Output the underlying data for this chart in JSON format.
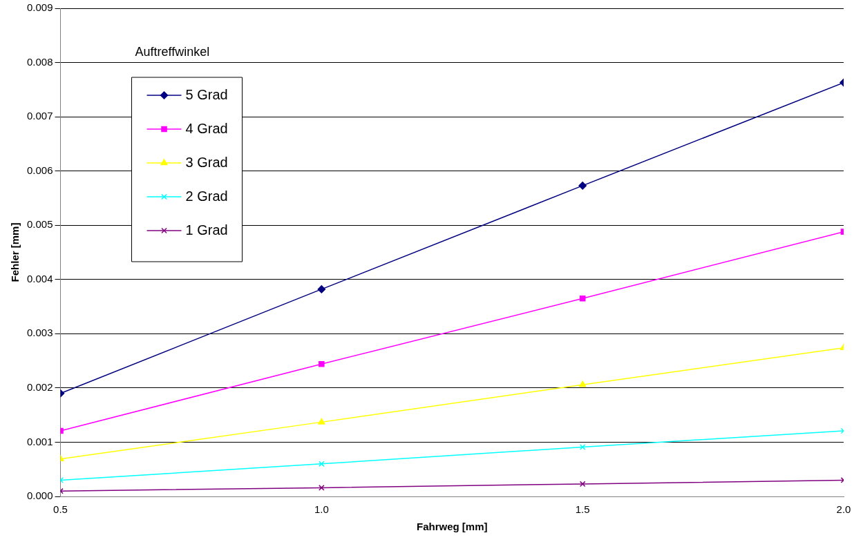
{
  "chart_data": {
    "type": "line",
    "xlabel": "Fahrweg [mm]",
    "ylabel": "Fehler [mm]",
    "legend_title": "Auftreffwinkel",
    "legend": "top left",
    "x": [
      0.5,
      1.0,
      1.5,
      2.0
    ],
    "xlim": [
      0.5,
      2.0
    ],
    "xticks": [
      {
        "value": 0.5,
        "label": "0.5"
      },
      {
        "value": 1.0,
        "label": "1.0"
      },
      {
        "value": 1.5,
        "label": "1.5"
      },
      {
        "value": 2.0,
        "label": "2.0"
      }
    ],
    "ylim": [
      0,
      0.009
    ],
    "yticks": [
      {
        "value": 0,
        "label": "0.000"
      },
      {
        "value": 0.001,
        "label": "0.001"
      },
      {
        "value": 0.002,
        "label": "0.002"
      },
      {
        "value": 0.003,
        "label": "0.003"
      },
      {
        "value": 0.004,
        "label": "0.004"
      },
      {
        "value": 0.005,
        "label": "0.005"
      },
      {
        "value": 0.006,
        "label": "0.006"
      },
      {
        "value": 0.007,
        "label": "0.007"
      },
      {
        "value": 0.008,
        "label": "0.008"
      },
      {
        "value": 0.009,
        "label": "0.009"
      }
    ],
    "grid": "y",
    "line_style": "solid",
    "series": [
      {
        "name": "5 Grad",
        "color": "#000080",
        "marker": "diamond",
        "values": [
          0.0019,
          0.00382,
          0.00573,
          0.00763
        ]
      },
      {
        "name": "4 Grad",
        "color": "#ff00ff",
        "marker": "square",
        "values": [
          0.00121,
          0.00244,
          0.00365,
          0.00488
        ]
      },
      {
        "name": "3 Grad",
        "color": "#ffff00",
        "marker": "triangle",
        "values": [
          0.00069,
          0.00137,
          0.00206,
          0.00274
        ]
      },
      {
        "name": "2 Grad",
        "color": "#00ffff",
        "marker": "cross",
        "values": [
          0.0003,
          0.0006,
          0.00091,
          0.00121
        ]
      },
      {
        "name": "1 Grad",
        "color": "#800080",
        "marker": "cross",
        "values": [
          0.0001,
          0.00016,
          0.00023,
          0.0003
        ]
      }
    ]
  }
}
